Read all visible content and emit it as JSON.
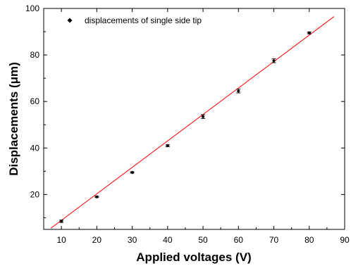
{
  "chart_data": {
    "type": "scatter",
    "xlabel": "Applied voltages (V)",
    "ylabel": "Displacements (μm)",
    "xlim": [
      5,
      90
    ],
    "ylim": [
      5,
      100
    ],
    "xticks": [
      10,
      20,
      30,
      40,
      50,
      60,
      70,
      80,
      90
    ],
    "yticks": [
      20,
      40,
      60,
      80,
      100
    ],
    "grid": false,
    "legend_position": "top-left",
    "series": [
      {
        "name": "displacements of single side tip",
        "kind": "points",
        "marker_color": "#000000",
        "x": [
          10,
          20,
          30,
          40,
          50,
          60,
          70,
          80
        ],
        "y": [
          8.5,
          19,
          29.5,
          41,
          53.5,
          64.5,
          77.5,
          89.5
        ],
        "error": [
          0.5,
          0.3,
          0.3,
          0.4,
          0.8,
          0.8,
          0.8,
          0.4
        ]
      },
      {
        "kind": "fit-line",
        "line_color": "#ff0000",
        "x": [
          7,
          87
        ],
        "y": [
          5.5,
          96.5
        ]
      }
    ]
  }
}
